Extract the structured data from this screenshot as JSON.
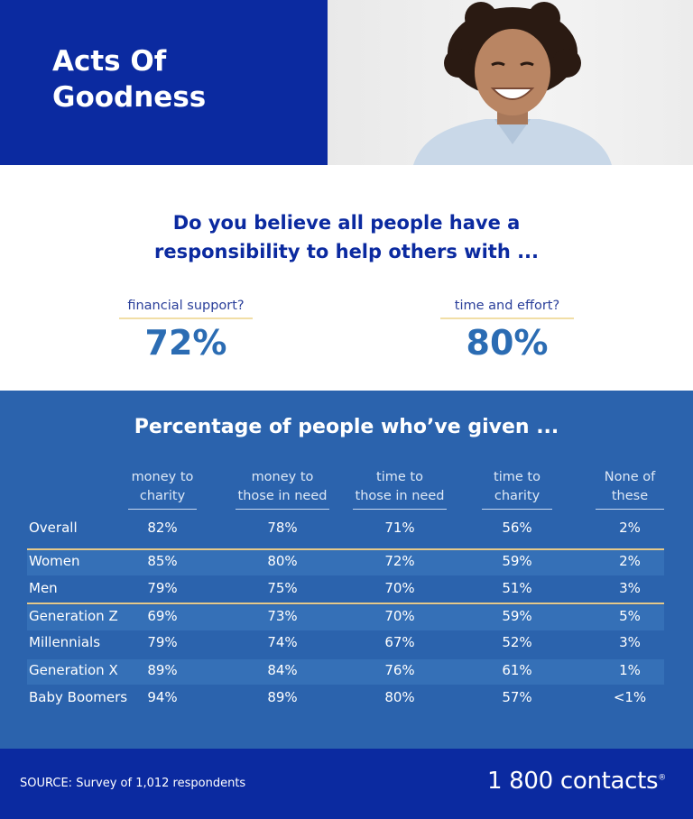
{
  "header": {
    "title_line1": "Acts Of",
    "title_line2": "Goodness"
  },
  "question": {
    "text_line1": "Do you believe all people have a",
    "text_line2": "responsibility to help others with ...",
    "cards": [
      {
        "label": "financial support?",
        "value": "72%"
      },
      {
        "label": "time and effort?",
        "value": "80%"
      }
    ]
  },
  "chart_data": {
    "type": "table",
    "title": "Percentage of people who’ve given ...",
    "columns": [
      [
        "money to",
        "charity"
      ],
      [
        "money to",
        "those in need"
      ],
      [
        "time to",
        "those in need"
      ],
      [
        "time to",
        "charity"
      ],
      [
        "None of",
        "these"
      ]
    ],
    "rows": [
      {
        "label": "Overall",
        "values": [
          "82%",
          "78%",
          "71%",
          "56%",
          "2%"
        ]
      },
      {
        "label": "Women",
        "values": [
          "85%",
          "80%",
          "72%",
          "59%",
          "2%"
        ]
      },
      {
        "label": "Men",
        "values": [
          "79%",
          "75%",
          "70%",
          "51%",
          "3%"
        ]
      },
      {
        "label": "Generation Z",
        "values": [
          "69%",
          "73%",
          "70%",
          "59%",
          "5%"
        ]
      },
      {
        "label": "Millennials",
        "values": [
          "79%",
          "74%",
          "67%",
          "52%",
          "3%"
        ]
      },
      {
        "label": "Generation X",
        "values": [
          "89%",
          "84%",
          "76%",
          "61%",
          "1%"
        ]
      },
      {
        "label": "Baby Boomers",
        "values": [
          "94%",
          "89%",
          "80%",
          "57%",
          "<1%"
        ]
      }
    ]
  },
  "footer": {
    "source": "SOURCE: Survey of 1,012 respondents",
    "brand": "1 800 contacts",
    "brand_mark": "®"
  },
  "colors": {
    "navy": "#0b2aa0",
    "chart_blue": "#2b63ad",
    "band_blue": "#3570b7",
    "gold": "#e5c98a"
  }
}
